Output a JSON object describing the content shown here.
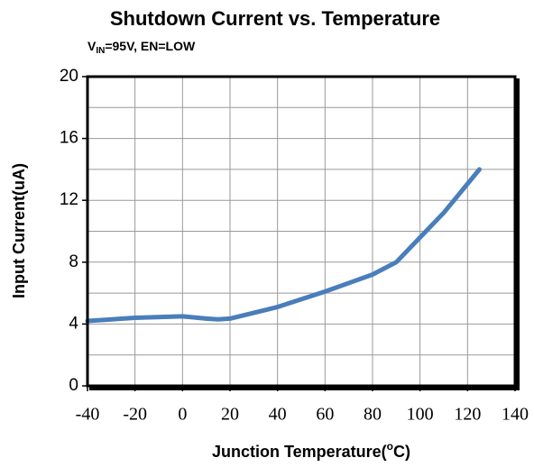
{
  "chart_data": {
    "type": "line",
    "title": "Shutdown Current vs. Temperature",
    "subtitle": {
      "main": "V",
      "sub": "IN",
      "rest": "=95V, EN=LOW"
    },
    "x_label": {
      "main": "Junction Temperature(",
      "sup": "o",
      "rest": "C)"
    },
    "y_label": "Input Current(uA)",
    "x": [
      -40,
      -20,
      0,
      10,
      15,
      20,
      40,
      60,
      80,
      90,
      100,
      110,
      125
    ],
    "series": [
      {
        "name": "Input Current",
        "color": "#4a7ebb",
        "values": [
          4.2,
          4.4,
          4.5,
          4.35,
          4.3,
          4.35,
          5.1,
          6.1,
          7.2,
          8.0,
          9.6,
          11.2,
          14.0
        ]
      }
    ],
    "xlim": [
      -40,
      140
    ],
    "xticks": [
      -40,
      -20,
      0,
      20,
      40,
      60,
      80,
      100,
      120,
      140
    ],
    "ylim": [
      0,
      20
    ],
    "yticks": [
      0,
      4,
      8,
      12,
      16,
      20
    ],
    "yminor": [
      2,
      6,
      10,
      14,
      18
    ],
    "grid": true
  }
}
